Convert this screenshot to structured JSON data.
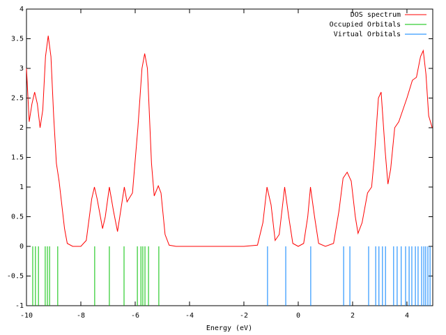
{
  "chart_data": {
    "type": "line",
    "xlabel": "Energy (eV)",
    "xlim": [
      -10,
      4.95
    ],
    "ylim": [
      -1,
      4
    ],
    "xticks": [
      -10,
      -8,
      -6,
      -4,
      -2,
      0,
      2,
      4
    ],
    "yticks": [
      -1,
      -0.5,
      0,
      0.5,
      1,
      1.5,
      2,
      2.5,
      3,
      3.5,
      4
    ],
    "legend": "upper right",
    "series": [
      {
        "name": "DOS spectrum",
        "color": "#ff0000",
        "style": "line",
        "x": [
          -10,
          -9.9,
          -9.8,
          -9.7,
          -9.6,
          -9.5,
          -9.4,
          -9.3,
          -9.2,
          -9.1,
          -9.0,
          -8.9,
          -8.8,
          -8.7,
          -8.6,
          -8.5,
          -8.3,
          -8.0,
          -7.8,
          -7.6,
          -7.5,
          -7.4,
          -7.2,
          -7.1,
          -6.95,
          -6.8,
          -6.65,
          -6.5,
          -6.4,
          -6.3,
          -6.1,
          -5.9,
          -5.75,
          -5.65,
          -5.55,
          -5.4,
          -5.3,
          -5.15,
          -5.05,
          -4.9,
          -4.75,
          -4.5,
          -2.0,
          -1.5,
          -1.3,
          -1.15,
          -1.0,
          -0.85,
          -0.7,
          -0.5,
          -0.35,
          -0.2,
          0,
          0.2,
          0.35,
          0.45,
          0.6,
          0.75,
          1.0,
          1.3,
          1.5,
          1.65,
          1.8,
          1.95,
          2.1,
          2.2,
          2.35,
          2.55,
          2.7,
          2.8,
          2.95,
          3.05,
          3.2,
          3.3,
          3.4,
          3.55,
          3.7,
          3.85,
          4.0,
          4.2,
          4.35,
          4.5,
          4.6,
          4.7,
          4.8,
          4.93
        ],
        "values": [
          3.0,
          2.1,
          2.4,
          2.6,
          2.4,
          2.0,
          2.3,
          3.2,
          3.55,
          3.2,
          2.2,
          1.4,
          1.1,
          0.7,
          0.3,
          0.05,
          0,
          0,
          0.1,
          0.8,
          1.0,
          0.8,
          0.3,
          0.5,
          1.0,
          0.6,
          0.25,
          0.7,
          1.0,
          0.75,
          0.9,
          2.0,
          3.0,
          3.25,
          3.0,
          1.4,
          0.85,
          1.02,
          0.9,
          0.2,
          0.02,
          0,
          0,
          0.02,
          0.4,
          1.0,
          0.7,
          0.1,
          0.2,
          1.0,
          0.5,
          0.05,
          0,
          0.05,
          0.5,
          1.0,
          0.5,
          0.05,
          0,
          0.05,
          0.6,
          1.15,
          1.25,
          1.1,
          0.5,
          0.22,
          0.4,
          0.9,
          1.0,
          1.5,
          2.5,
          2.6,
          1.6,
          1.05,
          1.3,
          2.0,
          2.1,
          2.3,
          2.5,
          2.8,
          2.85,
          3.2,
          3.3,
          2.9,
          2.2,
          2.0
        ]
      },
      {
        "name": "Occupied Orbitals",
        "color": "#00c000",
        "style": "impulse",
        "x": [
          -9.77,
          -9.67,
          -9.56,
          -9.31,
          -9.23,
          -9.15,
          -8.85,
          -7.49,
          -6.95,
          -6.41,
          -5.92,
          -5.79,
          -5.72,
          -5.64,
          -5.51,
          -5.13
        ]
      },
      {
        "name": "Virtual Orbitals",
        "color": "#0080ff",
        "style": "impulse",
        "x": [
          -1.13,
          -0.46,
          0.46,
          1.67,
          1.9,
          2.59,
          2.85,
          2.97,
          3.1,
          3.21,
          3.51,
          3.64,
          3.79,
          3.95,
          4.08,
          4.18,
          4.31,
          4.41,
          4.54,
          4.62,
          4.69,
          4.77,
          4.85
        ]
      }
    ]
  }
}
